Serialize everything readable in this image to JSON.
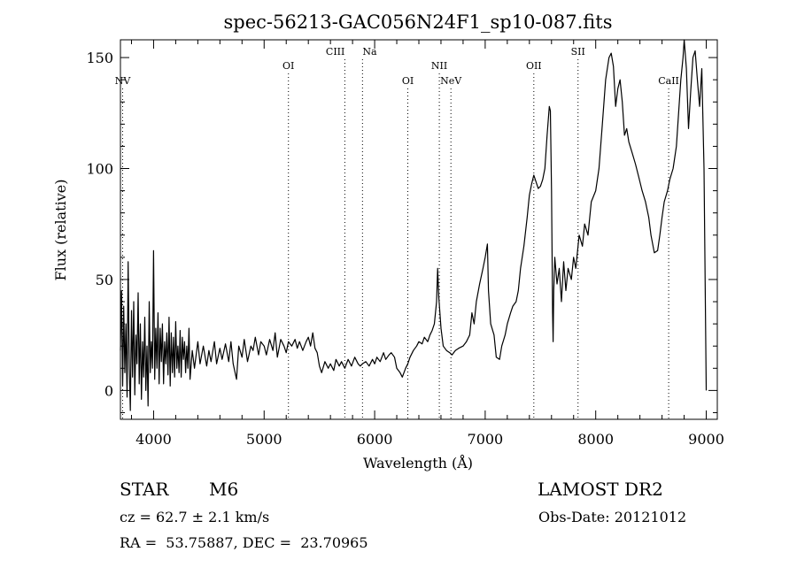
{
  "chart_data": {
    "type": "line",
    "title": "spec-56213-GAC056N24F1_sp10-087.fits",
    "xlabel": "Wavelength (Å)",
    "ylabel": "Flux (relative)",
    "xlim": [
      3700,
      9100
    ],
    "ylim": [
      -13,
      158
    ],
    "xticks": [
      4000,
      5000,
      6000,
      7000,
      8000,
      9000
    ],
    "yticks": [
      0,
      50,
      100,
      150
    ],
    "grid": false,
    "line_color": "#000000",
    "line_ids": [
      {
        "label": "NV",
        "wavelength": 3720
      },
      {
        "label": "OI",
        "wavelength": 5220
      },
      {
        "label": "CIII",
        "wavelength": 5730
      },
      {
        "label": "Na",
        "wavelength": 5890
      },
      {
        "label": "OI",
        "wavelength": 6300
      },
      {
        "label": "NII",
        "wavelength": 6585
      },
      {
        "label": "NeV",
        "wavelength": 6690
      },
      {
        "label": "OII",
        "wavelength": 7440
      },
      {
        "label": "SII",
        "wavelength": 7840
      },
      {
        "label": "CaII",
        "wavelength": 8660
      }
    ],
    "series": [
      {
        "points": [
          [
            3700,
            18
          ],
          [
            3710,
            45
          ],
          [
            3720,
            2
          ],
          [
            3730,
            38
          ],
          [
            3740,
            8
          ],
          [
            3750,
            30
          ],
          [
            3760,
            -3
          ],
          [
            3770,
            58
          ],
          [
            3780,
            10
          ],
          [
            3790,
            -9
          ],
          [
            3800,
            36
          ],
          [
            3810,
            6
          ],
          [
            3820,
            40
          ],
          [
            3830,
            -2
          ],
          [
            3840,
            25
          ],
          [
            3850,
            12
          ],
          [
            3860,
            44
          ],
          [
            3870,
            3
          ],
          [
            3880,
            30
          ],
          [
            3890,
            -4
          ],
          [
            3900,
            22
          ],
          [
            3910,
            6
          ],
          [
            3920,
            33
          ],
          [
            3930,
            0
          ],
          [
            3940,
            20
          ],
          [
            3950,
            -7
          ],
          [
            3960,
            40
          ],
          [
            3970,
            8
          ],
          [
            3980,
            22
          ],
          [
            3990,
            10
          ],
          [
            4000,
            63
          ],
          [
            4010,
            5
          ],
          [
            4020,
            28
          ],
          [
            4030,
            10
          ],
          [
            4040,
            35
          ],
          [
            4050,
            3
          ],
          [
            4060,
            28
          ],
          [
            4070,
            13
          ],
          [
            4080,
            30
          ],
          [
            4090,
            3
          ],
          [
            4100,
            22
          ],
          [
            4110,
            12
          ],
          [
            4120,
            26
          ],
          [
            4130,
            7
          ],
          [
            4140,
            33
          ],
          [
            4150,
            2
          ],
          [
            4160,
            26
          ],
          [
            4170,
            8
          ],
          [
            4180,
            24
          ],
          [
            4190,
            6
          ],
          [
            4200,
            31
          ],
          [
            4210,
            10
          ],
          [
            4220,
            20
          ],
          [
            4230,
            8
          ],
          [
            4240,
            27
          ],
          [
            4250,
            6
          ],
          [
            4260,
            24
          ],
          [
            4270,
            14
          ],
          [
            4280,
            22
          ],
          [
            4290,
            8
          ],
          [
            4300,
            20
          ],
          [
            4310,
            10
          ],
          [
            4320,
            28
          ],
          [
            4330,
            5
          ],
          [
            4350,
            18
          ],
          [
            4370,
            10
          ],
          [
            4400,
            22
          ],
          [
            4420,
            12
          ],
          [
            4450,
            20
          ],
          [
            4480,
            11
          ],
          [
            4500,
            18
          ],
          [
            4520,
            13
          ],
          [
            4550,
            22
          ],
          [
            4570,
            12
          ],
          [
            4600,
            19
          ],
          [
            4620,
            14
          ],
          [
            4650,
            21
          ],
          [
            4680,
            13
          ],
          [
            4700,
            22
          ],
          [
            4720,
            12
          ],
          [
            4750,
            5
          ],
          [
            4770,
            20
          ],
          [
            4800,
            15
          ],
          [
            4820,
            23
          ],
          [
            4850,
            13
          ],
          [
            4880,
            20
          ],
          [
            4900,
            18
          ],
          [
            4920,
            24
          ],
          [
            4950,
            16
          ],
          [
            4970,
            22
          ],
          [
            5000,
            20
          ],
          [
            5020,
            16
          ],
          [
            5050,
            23
          ],
          [
            5080,
            18
          ],
          [
            5100,
            26
          ],
          [
            5120,
            15
          ],
          [
            5150,
            23
          ],
          [
            5180,
            20
          ],
          [
            5200,
            17
          ],
          [
            5220,
            22
          ],
          [
            5250,
            20
          ],
          [
            5280,
            23
          ],
          [
            5300,
            19
          ],
          [
            5320,
            22
          ],
          [
            5350,
            18
          ],
          [
            5380,
            22
          ],
          [
            5400,
            24
          ],
          [
            5420,
            20
          ],
          [
            5440,
            26
          ],
          [
            5460,
            19
          ],
          [
            5480,
            17
          ],
          [
            5500,
            11
          ],
          [
            5520,
            8
          ],
          [
            5550,
            13
          ],
          [
            5580,
            10
          ],
          [
            5600,
            12
          ],
          [
            5630,
            9
          ],
          [
            5650,
            14
          ],
          [
            5680,
            11
          ],
          [
            5700,
            13
          ],
          [
            5730,
            10
          ],
          [
            5760,
            14
          ],
          [
            5790,
            11
          ],
          [
            5820,
            15
          ],
          [
            5850,
            12
          ],
          [
            5870,
            11
          ],
          [
            5890,
            12
          ],
          [
            5920,
            13
          ],
          [
            5950,
            11
          ],
          [
            5980,
            14
          ],
          [
            6000,
            12
          ],
          [
            6020,
            15
          ],
          [
            6050,
            13
          ],
          [
            6080,
            17
          ],
          [
            6100,
            14
          ],
          [
            6130,
            16
          ],
          [
            6150,
            17
          ],
          [
            6180,
            15
          ],
          [
            6200,
            10
          ],
          [
            6230,
            8
          ],
          [
            6250,
            6
          ],
          [
            6280,
            10
          ],
          [
            6300,
            12
          ],
          [
            6320,
            15
          ],
          [
            6350,
            18
          ],
          [
            6380,
            20
          ],
          [
            6400,
            22
          ],
          [
            6430,
            21
          ],
          [
            6450,
            24
          ],
          [
            6480,
            22
          ],
          [
            6500,
            25
          ],
          [
            6520,
            27
          ],
          [
            6540,
            30
          ],
          [
            6560,
            40
          ],
          [
            6570,
            55
          ],
          [
            6580,
            42
          ],
          [
            6600,
            28
          ],
          [
            6620,
            20
          ],
          [
            6650,
            18
          ],
          [
            6680,
            17
          ],
          [
            6700,
            16
          ],
          [
            6730,
            18
          ],
          [
            6760,
            19
          ],
          [
            6800,
            20
          ],
          [
            6830,
            22
          ],
          [
            6860,
            25
          ],
          [
            6880,
            35
          ],
          [
            6900,
            30
          ],
          [
            6920,
            40
          ],
          [
            6950,
            48
          ],
          [
            6980,
            55
          ],
          [
            7000,
            60
          ],
          [
            7020,
            66
          ],
          [
            7030,
            45
          ],
          [
            7050,
            30
          ],
          [
            7080,
            25
          ],
          [
            7100,
            15
          ],
          [
            7130,
            14
          ],
          [
            7150,
            20
          ],
          [
            7180,
            25
          ],
          [
            7200,
            30
          ],
          [
            7230,
            35
          ],
          [
            7250,
            38
          ],
          [
            7280,
            40
          ],
          [
            7300,
            45
          ],
          [
            7320,
            55
          ],
          [
            7350,
            65
          ],
          [
            7380,
            78
          ],
          [
            7400,
            88
          ],
          [
            7420,
            93
          ],
          [
            7440,
            97
          ],
          [
            7460,
            94
          ],
          [
            7480,
            91
          ],
          [
            7500,
            92
          ],
          [
            7520,
            95
          ],
          [
            7540,
            100
          ],
          [
            7560,
            115
          ],
          [
            7580,
            128
          ],
          [
            7590,
            126
          ],
          [
            7600,
            90
          ],
          [
            7610,
            35
          ],
          [
            7615,
            22
          ],
          [
            7620,
            45
          ],
          [
            7630,
            60
          ],
          [
            7650,
            48
          ],
          [
            7670,
            55
          ],
          [
            7690,
            40
          ],
          [
            7710,
            58
          ],
          [
            7730,
            45
          ],
          [
            7750,
            55
          ],
          [
            7780,
            50
          ],
          [
            7800,
            60
          ],
          [
            7820,
            55
          ],
          [
            7850,
            70
          ],
          [
            7880,
            65
          ],
          [
            7900,
            75
          ],
          [
            7930,
            70
          ],
          [
            7960,
            85
          ],
          [
            8000,
            90
          ],
          [
            8030,
            100
          ],
          [
            8060,
            120
          ],
          [
            8090,
            140
          ],
          [
            8120,
            150
          ],
          [
            8140,
            152
          ],
          [
            8160,
            146
          ],
          [
            8180,
            128
          ],
          [
            8200,
            136
          ],
          [
            8220,
            140
          ],
          [
            8240,
            130
          ],
          [
            8260,
            115
          ],
          [
            8280,
            118
          ],
          [
            8300,
            112
          ],
          [
            8330,
            107
          ],
          [
            8360,
            102
          ],
          [
            8390,
            96
          ],
          [
            8420,
            90
          ],
          [
            8450,
            85
          ],
          [
            8480,
            78
          ],
          [
            8500,
            70
          ],
          [
            8530,
            62
          ],
          [
            8560,
            63
          ],
          [
            8580,
            70
          ],
          [
            8600,
            78
          ],
          [
            8620,
            85
          ],
          [
            8650,
            90
          ],
          [
            8670,
            95
          ],
          [
            8700,
            100
          ],
          [
            8730,
            110
          ],
          [
            8750,
            125
          ],
          [
            8770,
            140
          ],
          [
            8790,
            150
          ],
          [
            8800,
            158
          ],
          [
            8820,
            145
          ],
          [
            8840,
            118
          ],
          [
            8860,
            135
          ],
          [
            8880,
            150
          ],
          [
            8900,
            153
          ],
          [
            8920,
            140
          ],
          [
            8940,
            128
          ],
          [
            8960,
            145
          ],
          [
            8980,
            100
          ],
          [
            9000,
            0
          ]
        ]
      }
    ]
  },
  "info": {
    "object_class": "STAR",
    "subclass": "M6",
    "survey": "LAMOST DR2",
    "redshift": "cz = 62.7 ± 2.1 km/s",
    "obs_date": "Obs-Date: 20121012",
    "coords": "RA =  53.75887, DEC =  23.70965"
  }
}
